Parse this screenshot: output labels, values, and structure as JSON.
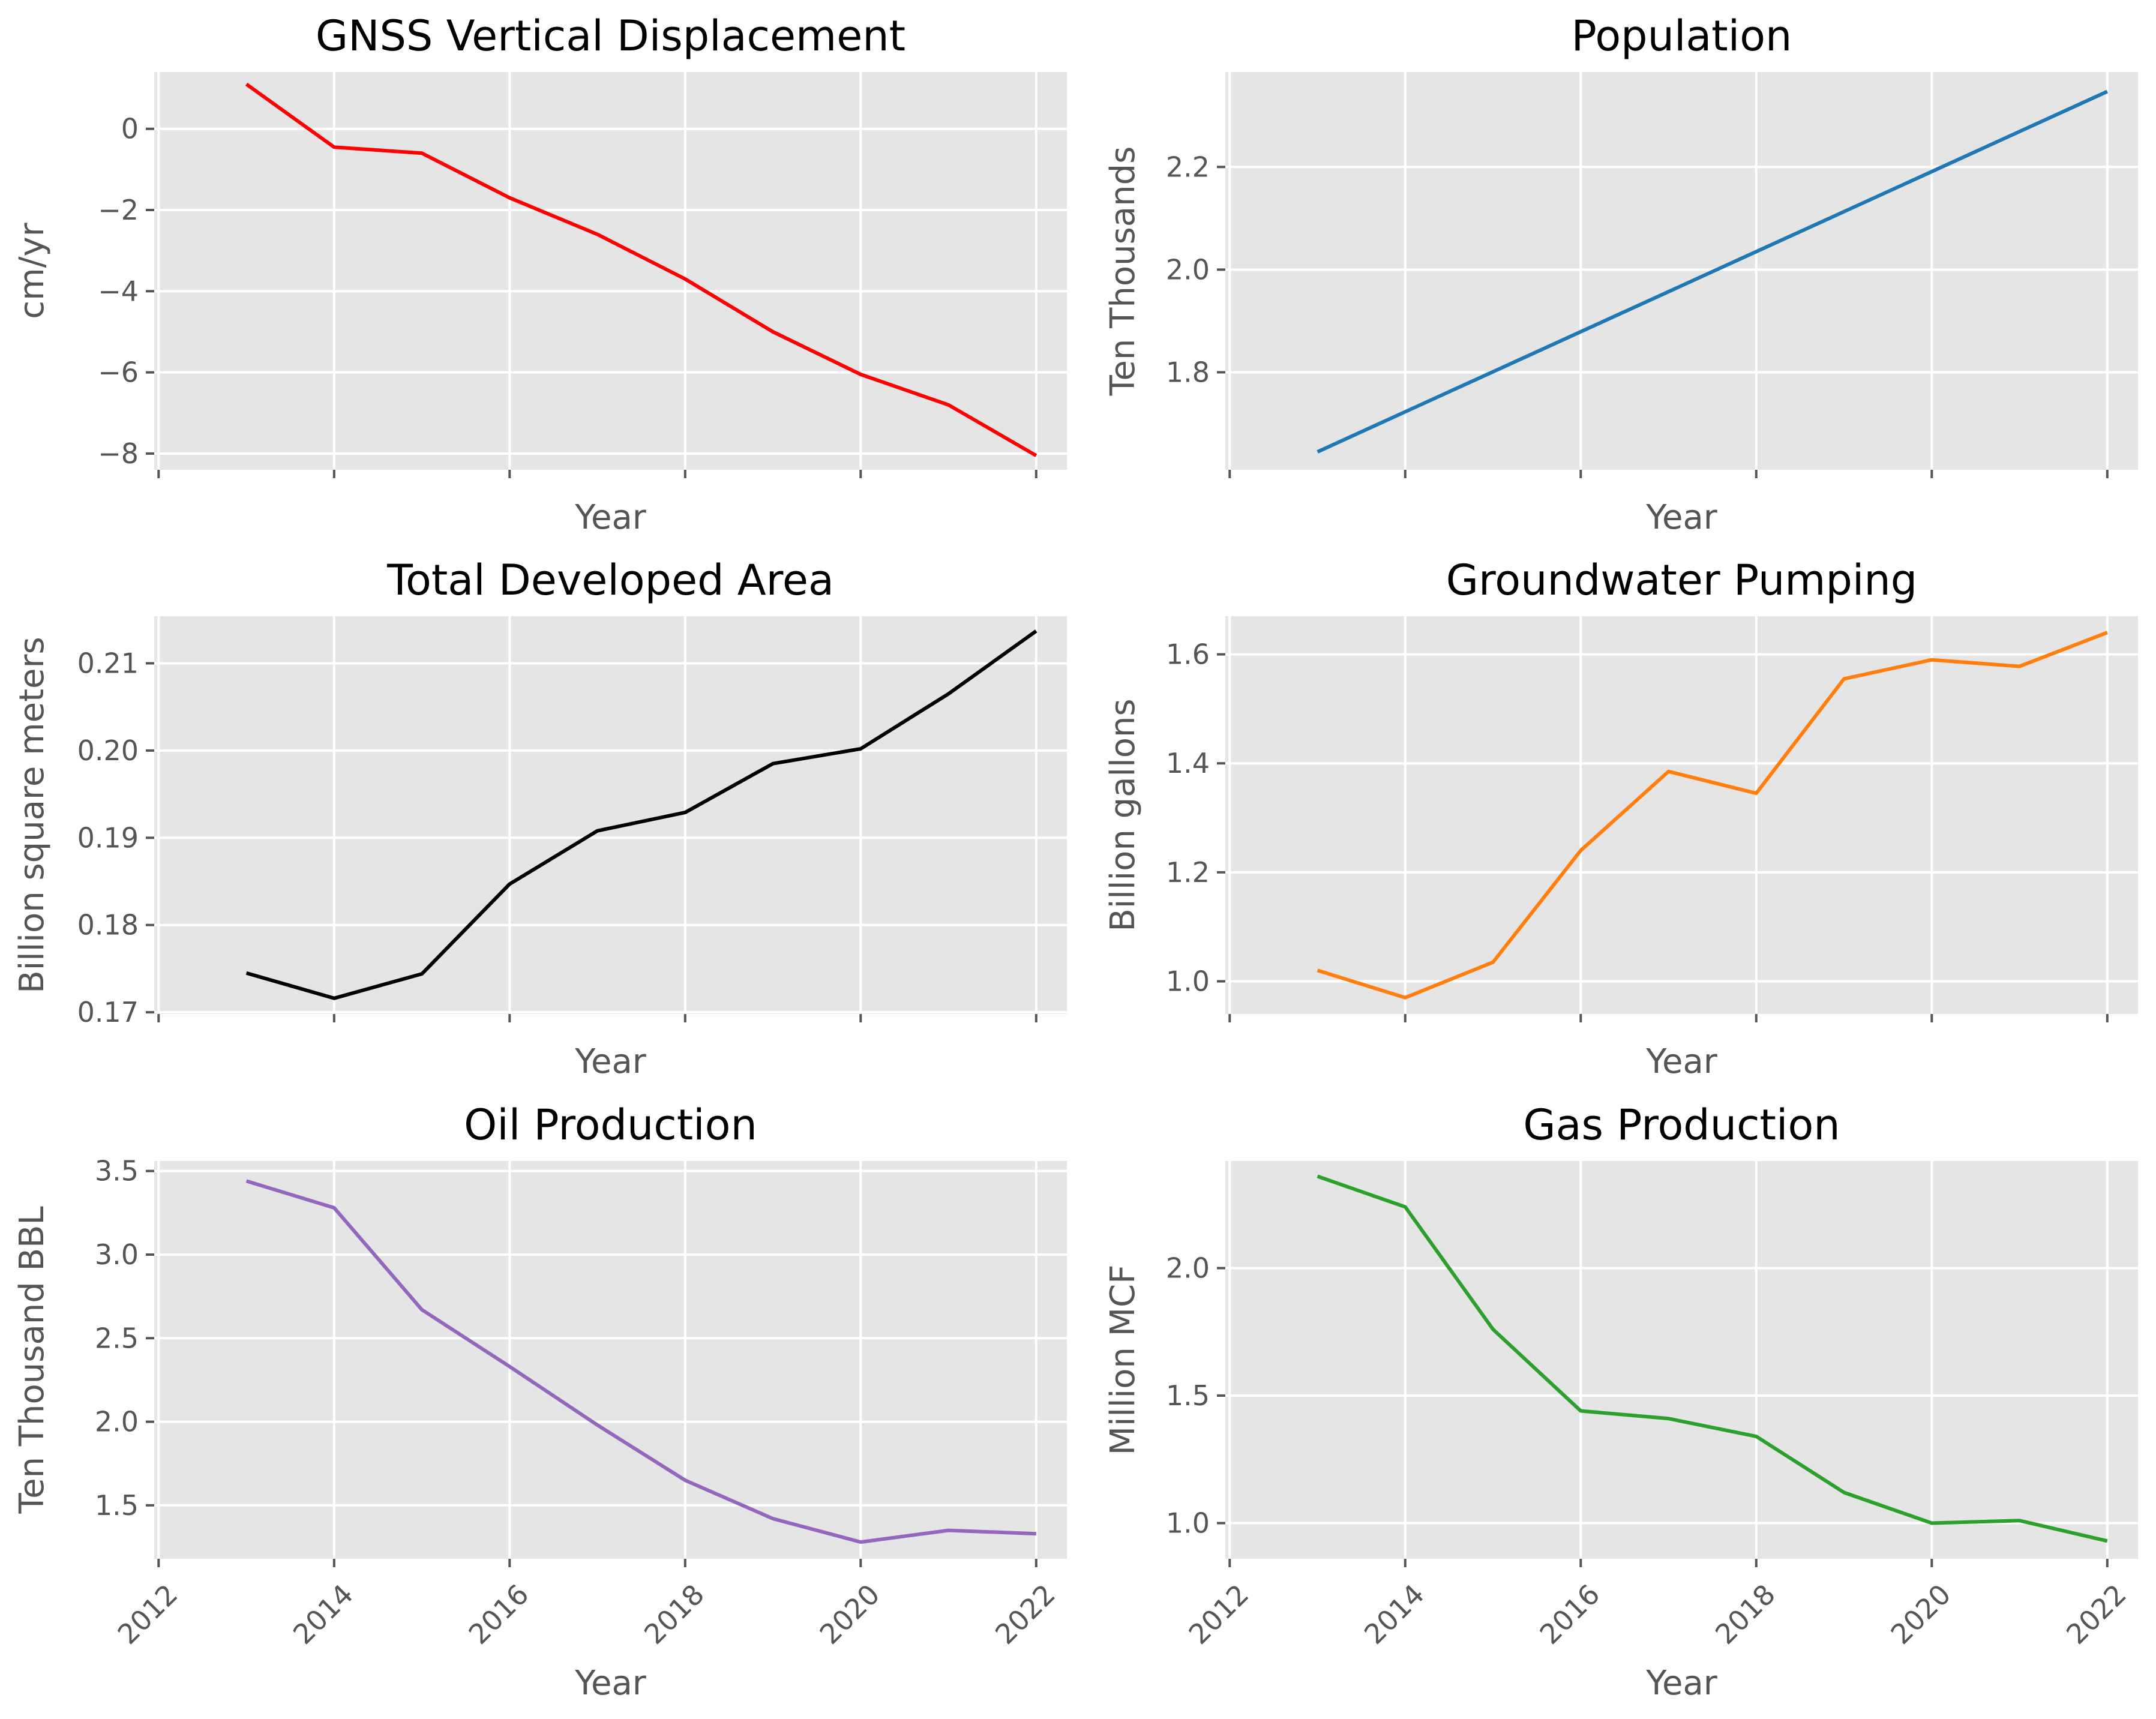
{
  "chart_data": [
    {
      "type": "line",
      "title": "GNSS Vertical Displacement",
      "xlabel": "Year",
      "ylabel": "cm/yr",
      "color": "#ff0000",
      "xlim": [
        2011.95,
        2022.35
      ],
      "ylim": [
        -8.4,
        1.4
      ],
      "xticks": [
        2012,
        2014,
        2016,
        2018,
        2020,
        2022
      ],
      "show_xticklabels": false,
      "yticks": [
        0,
        -2,
        -4,
        -6,
        -8
      ],
      "ytick_labels": [
        "0",
        "−2",
        "−4",
        "−6",
        "−8"
      ],
      "x": [
        2013,
        2014,
        2015,
        2016,
        2017,
        2018,
        2019,
        2020,
        2021,
        2022
      ],
      "y": [
        1.1,
        -0.45,
        -0.6,
        -1.7,
        -2.6,
        -3.7,
        -5.0,
        -6.05,
        -6.8,
        -8.05
      ]
    },
    {
      "type": "line",
      "title": "Population",
      "xlabel": "Year",
      "ylabel": "Ten Thousands",
      "color": "#1f77b4",
      "xlim": [
        2011.95,
        2022.35
      ],
      "ylim": [
        1.61,
        2.385
      ],
      "xticks": [
        2012,
        2014,
        2016,
        2018,
        2020,
        2022
      ],
      "show_xticklabels": false,
      "yticks": [
        1.8,
        2.0,
        2.2
      ],
      "ytick_labels": [
        "1.8",
        "2.0",
        "2.2"
      ],
      "x": [
        2013,
        2014,
        2015,
        2016,
        2017,
        2018,
        2019,
        2020,
        2021,
        2022
      ],
      "y": [
        1.645,
        1.723,
        1.801,
        1.879,
        1.957,
        2.035,
        2.113,
        2.191,
        2.269,
        2.347
      ]
    },
    {
      "type": "line",
      "title": "Total Developed Area",
      "xlabel": "Year",
      "ylabel": "Billion square meters",
      "color": "#000000",
      "xlim": [
        2011.95,
        2022.35
      ],
      "ylim": [
        0.1698,
        0.2154
      ],
      "xticks": [
        2012,
        2014,
        2016,
        2018,
        2020,
        2022
      ],
      "show_xticklabels": false,
      "yticks": [
        0.17,
        0.18,
        0.19,
        0.2,
        0.21
      ],
      "ytick_labels": [
        "0.17",
        "0.18",
        "0.19",
        "0.20",
        "0.21"
      ],
      "x": [
        2013,
        2014,
        2015,
        2016,
        2017,
        2018,
        2019,
        2020,
        2021,
        2022
      ],
      "y": [
        0.1745,
        0.1716,
        0.1744,
        0.1847,
        0.1908,
        0.1929,
        0.1985,
        0.2002,
        0.2065,
        0.2137
      ]
    },
    {
      "type": "line",
      "title": "Groundwater Pumping",
      "xlabel": "Year",
      "ylabel": "Billion gallons",
      "color": "#ff7f0e",
      "xlim": [
        2011.95,
        2022.35
      ],
      "ylim": [
        0.94,
        1.67
      ],
      "xticks": [
        2012,
        2014,
        2016,
        2018,
        2020,
        2022
      ],
      "show_xticklabels": false,
      "yticks": [
        1.0,
        1.2,
        1.4,
        1.6
      ],
      "ytick_labels": [
        "1.0",
        "1.2",
        "1.4",
        "1.6"
      ],
      "x": [
        2013,
        2014,
        2015,
        2016,
        2017,
        2018,
        2019,
        2020,
        2021,
        2022
      ],
      "y": [
        1.02,
        0.97,
        1.035,
        1.24,
        1.385,
        1.345,
        1.555,
        1.59,
        1.578,
        1.64
      ]
    },
    {
      "type": "line",
      "title": "Oil Production",
      "xlabel": "Year",
      "ylabel": "Ten Thousand BBL",
      "color": "#9467bd",
      "xlim": [
        2011.95,
        2022.35
      ],
      "ylim": [
        1.18,
        3.56
      ],
      "xticks": [
        2012,
        2014,
        2016,
        2018,
        2020,
        2022
      ],
      "show_xticklabels": true,
      "xtick_labels": [
        "2012",
        "2014",
        "2016",
        "2018",
        "2020",
        "2022"
      ],
      "yticks": [
        1.5,
        2.0,
        2.5,
        3.0,
        3.5
      ],
      "ytick_labels": [
        "1.5",
        "2.0",
        "2.5",
        "3.0",
        "3.5"
      ],
      "x": [
        2013,
        2014,
        2015,
        2016,
        2017,
        2018,
        2019,
        2020,
        2021,
        2022
      ],
      "y": [
        3.44,
        3.28,
        2.67,
        2.33,
        1.98,
        1.65,
        1.42,
        1.28,
        1.35,
        1.33
      ]
    },
    {
      "type": "line",
      "title": "Gas Production",
      "xlabel": "Year",
      "ylabel": "Million MCF",
      "color": "#2ca02c",
      "xlim": [
        2011.95,
        2022.35
      ],
      "ylim": [
        0.86,
        2.42
      ],
      "xticks": [
        2012,
        2014,
        2016,
        2018,
        2020,
        2022
      ],
      "show_xticklabels": true,
      "xtick_labels": [
        "2012",
        "2014",
        "2016",
        "2018",
        "2020",
        "2022"
      ],
      "yticks": [
        1.0,
        1.5,
        2.0
      ],
      "ytick_labels": [
        "1.0",
        "1.5",
        "2.0"
      ],
      "x": [
        2013,
        2014,
        2015,
        2016,
        2017,
        2018,
        2019,
        2020,
        2021,
        2022
      ],
      "y": [
        2.36,
        2.24,
        1.76,
        1.44,
        1.41,
        1.34,
        1.12,
        1.0,
        1.01,
        0.93
      ]
    }
  ]
}
